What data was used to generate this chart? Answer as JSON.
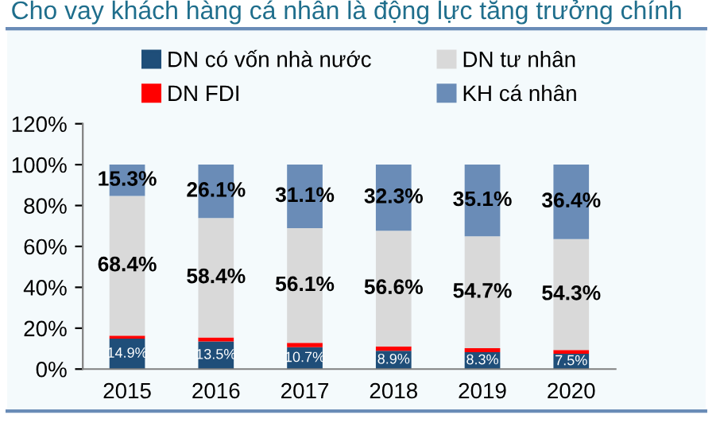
{
  "chart_data": {
    "type": "bar",
    "title": "Cho vay khách hàng cá nhân là động lực tăng trưởng chính",
    "categories": [
      "2015",
      "2016",
      "2017",
      "2018",
      "2019",
      "2020"
    ],
    "stacked": true,
    "series": [
      {
        "name": "DN có vốn nhà nước",
        "color": "#1f4e79",
        "values": [
          14.9,
          13.5,
          10.7,
          8.9,
          8.3,
          7.5
        ],
        "value_labels": [
          "14.9%",
          "13.5%",
          "10.7%",
          "8.9%",
          "8.3%",
          "7.5%"
        ]
      },
      {
        "name": "DN FDI",
        "color": "#ff0000",
        "values": [
          1.4,
          2.0,
          2.1,
          2.2,
          1.9,
          1.8
        ]
      },
      {
        "name": "DN tư nhân",
        "color": "#d9d9d9",
        "values": [
          68.4,
          58.4,
          56.1,
          56.6,
          54.7,
          54.3
        ],
        "value_labels": [
          "68.4%",
          "58.4%",
          "56.1%",
          "56.6%",
          "54.7%",
          "54.3%"
        ]
      },
      {
        "name": "KH cá nhân",
        "color": "#6a8cb7",
        "values": [
          15.3,
          26.1,
          31.1,
          32.3,
          35.1,
          36.4
        ],
        "value_labels": [
          "15.3%",
          "26.1%",
          "31.1%",
          "32.3%",
          "35.1%",
          "36.4%"
        ]
      }
    ],
    "ylim": [
      0,
      120
    ],
    "yticks": [
      {
        "value": 0,
        "label": "0%"
      },
      {
        "value": 20,
        "label": "20%"
      },
      {
        "value": 40,
        "label": "40%"
      },
      {
        "value": 60,
        "label": "60%"
      },
      {
        "value": 80,
        "label": "80%"
      },
      {
        "value": 100,
        "label": "100%"
      },
      {
        "value": 120,
        "label": "120%"
      }
    ],
    "legend": "top"
  }
}
